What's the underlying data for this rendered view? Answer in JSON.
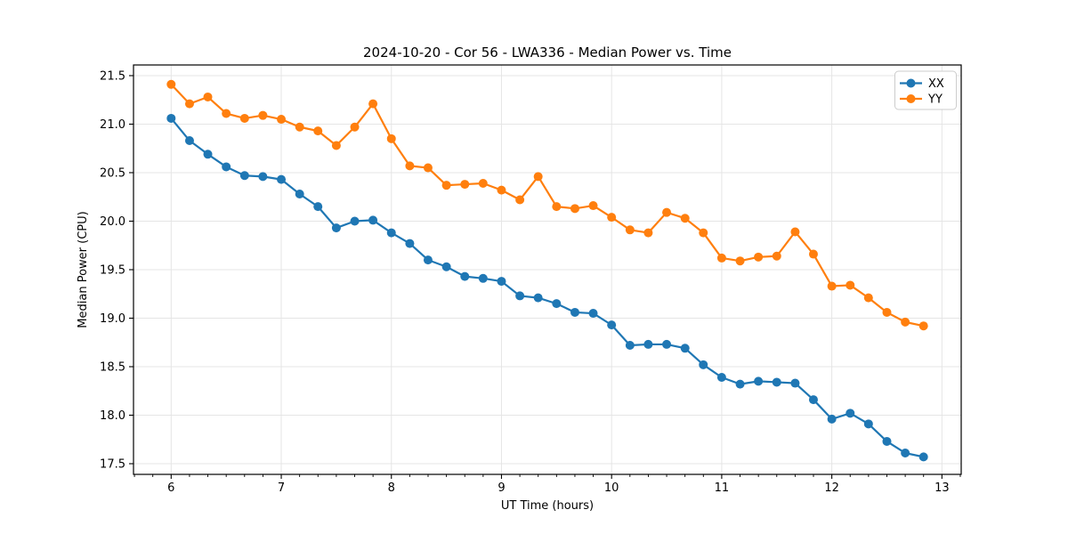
{
  "chart_data": {
    "type": "line",
    "title": "2024-10-20 - Cor 56 - LWA336 - Median Power vs. Time",
    "xlabel": "UT Time (hours)",
    "ylabel": "Median Power (CPU)",
    "xlim": [
      5.658,
      13.175
    ],
    "ylim": [
      17.39,
      21.61
    ],
    "xticks": [
      6,
      7,
      8,
      9,
      10,
      11,
      12,
      13
    ],
    "xtick_labels": [
      "6",
      "7",
      "8",
      "9",
      "10",
      "11",
      "12",
      "13"
    ],
    "yticks": [
      17.5,
      18.0,
      18.5,
      19.0,
      19.5,
      20.0,
      20.5,
      21.0,
      21.5
    ],
    "ytick_labels": [
      "17.5",
      "18.0",
      "18.5",
      "19.0",
      "19.5",
      "20.0",
      "20.5",
      "21.0",
      "21.5"
    ],
    "x_minor_step_hours": 0.1667,
    "grid": true,
    "grid_color": "#e5e5e5",
    "spine_color": "#000000",
    "legend_position": "upper right",
    "x": [
      6.0,
      6.167,
      6.333,
      6.5,
      6.667,
      6.833,
      7.0,
      7.167,
      7.333,
      7.5,
      7.667,
      7.833,
      8.0,
      8.167,
      8.333,
      8.5,
      8.667,
      8.833,
      9.0,
      9.167,
      9.333,
      9.5,
      9.667,
      9.833,
      10.0,
      10.167,
      10.333,
      10.5,
      10.667,
      10.833,
      11.0,
      11.167,
      11.333,
      11.5,
      11.667,
      11.833,
      12.0,
      12.167,
      12.333,
      12.5,
      12.667,
      12.833
    ],
    "series": [
      {
        "name": "XX",
        "color": "#1f77b4",
        "values": [
          21.06,
          20.83,
          20.69,
          20.56,
          20.47,
          20.46,
          20.43,
          20.28,
          20.15,
          19.93,
          20.0,
          20.01,
          19.88,
          19.77,
          19.6,
          19.53,
          19.43,
          19.41,
          19.38,
          19.23,
          19.21,
          19.15,
          19.06,
          19.05,
          18.93,
          18.72,
          18.73,
          18.73,
          18.69,
          18.52,
          18.39,
          18.32,
          18.35,
          18.34,
          18.33,
          18.16,
          17.96,
          18.02,
          17.91,
          17.73,
          17.61,
          17.57
        ]
      },
      {
        "name": "YY",
        "color": "#ff7f0e",
        "values": [
          21.41,
          21.21,
          21.28,
          21.11,
          21.06,
          21.09,
          21.05,
          20.97,
          20.93,
          20.78,
          20.97,
          21.21,
          20.85,
          20.57,
          20.55,
          20.37,
          20.38,
          20.39,
          20.32,
          20.22,
          20.46,
          20.15,
          20.13,
          20.16,
          20.04,
          19.91,
          19.88,
          20.09,
          20.03,
          19.88,
          19.62,
          19.59,
          19.63,
          19.64,
          19.89,
          19.66,
          19.33,
          19.34,
          19.21,
          19.06,
          18.96,
          18.92
        ]
      }
    ]
  }
}
